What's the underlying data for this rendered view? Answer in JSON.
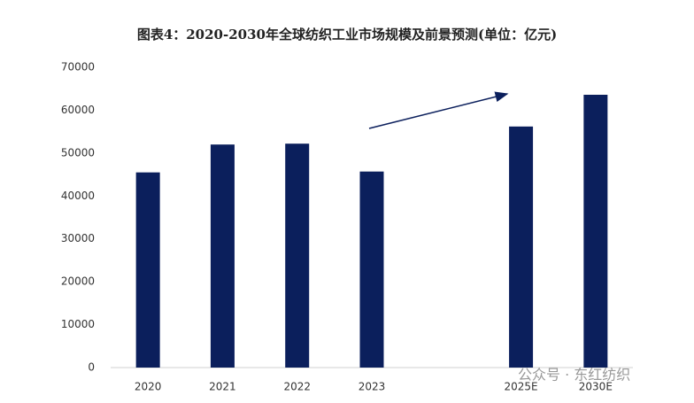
{
  "chart_data": {
    "type": "bar",
    "title": "图表4：2020-2030年全球纺织工业市场规模及前景预测(单位：亿元)",
    "categories": [
      "2020",
      "2021",
      "2022",
      "2023",
      null,
      "2025E",
      "2030E"
    ],
    "values": [
      45500,
      52000,
      52200,
      45700,
      null,
      56200,
      63600
    ],
    "color": "#0b1f5c",
    "ylim": [
      0,
      70000
    ],
    "yticks": [
      0,
      10000,
      20000,
      30000,
      40000,
      50000,
      60000,
      70000
    ],
    "grid": false,
    "watermark": "公众号 · 东红纺织"
  }
}
